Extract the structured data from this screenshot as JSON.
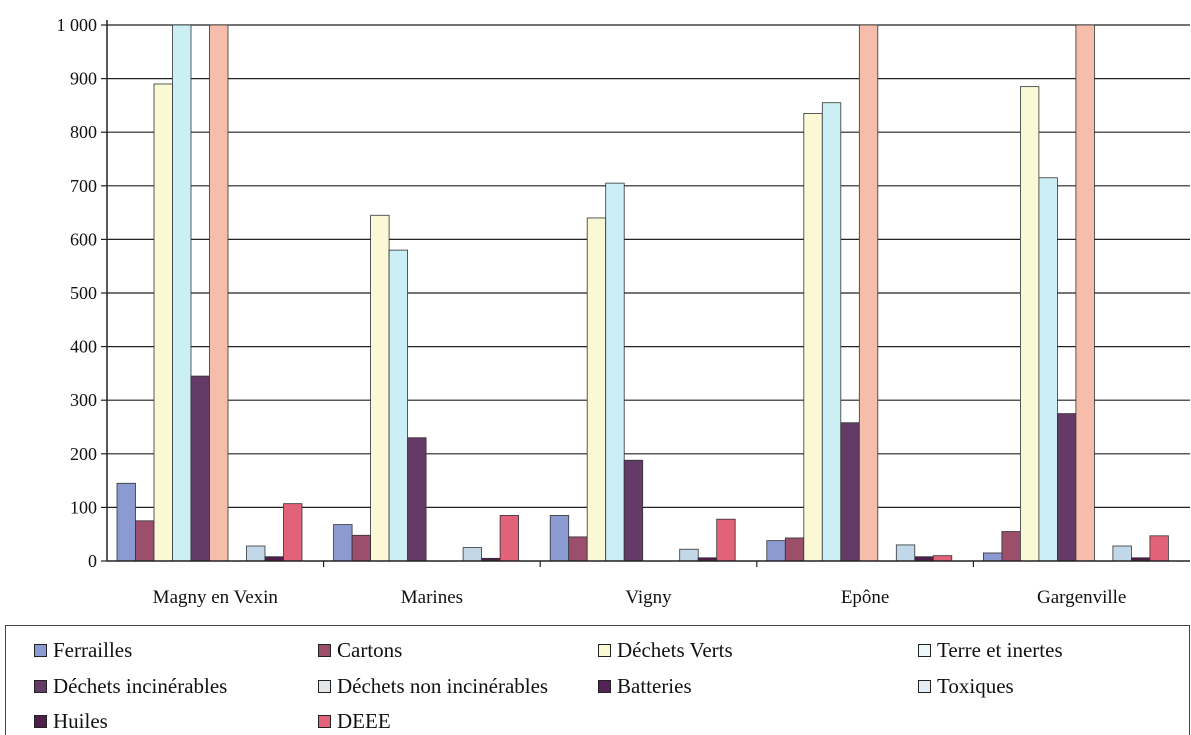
{
  "chart_data": {
    "type": "bar",
    "categories": [
      "Magny en Vexin",
      "Marines",
      "Vigny",
      "Epône",
      "Gargenville"
    ],
    "ylim": [
      0,
      1000
    ],
    "yticks": [
      "0",
      "100",
      "200",
      "300",
      "400",
      "500",
      "600",
      "700",
      "800",
      "900",
      "1 000"
    ],
    "grid": true,
    "legend_position": "bottom",
    "series": [
      {
        "name": "Ferrailles",
        "color": "#8b9ad0",
        "values": [
          145,
          68,
          85,
          38,
          15
        ]
      },
      {
        "name": "Cartons",
        "color": "#9b4f6b",
        "values": [
          75,
          48,
          45,
          43,
          55
        ]
      },
      {
        "name": "Déchets Verts",
        "color": "#fbf8d6",
        "values": [
          890,
          645,
          640,
          835,
          885
        ]
      },
      {
        "name": "Terre et inertes",
        "color": "#cceef5",
        "values": [
          1000,
          580,
          705,
          855,
          715
        ]
      },
      {
        "name": "Déchets incinérables",
        "color": "#643a66",
        "values": [
          345,
          230,
          188,
          258,
          275
        ]
      },
      {
        "name": "Déchets non incinérables",
        "color": "#f6bdaa",
        "values": [
          1000,
          0,
          0,
          1000,
          1000
        ]
      },
      {
        "name": "Batteries",
        "color": "#2a3a84",
        "values": [
          0,
          0,
          0,
          0,
          0
        ]
      },
      {
        "name": "Toxiques",
        "color": "#c2d7e8",
        "values": [
          28,
          25,
          22,
          30,
          28
        ]
      },
      {
        "name": "Huiles",
        "color": "#4d1f4a",
        "values": [
          8,
          5,
          6,
          8,
          6
        ]
      },
      {
        "name": "DEEE",
        "color": "#e2627a",
        "values": [
          107,
          85,
          78,
          10,
          47
        ]
      }
    ]
  },
  "legend": {
    "items": [
      {
        "label": "Ferrailles",
        "color": "#8b9ad0"
      },
      {
        "label": "Cartons",
        "color": "#9b4f6b"
      },
      {
        "label": "Déchets Verts",
        "color": "#fbf8d6"
      },
      {
        "label": "Terre et inertes",
        "color": "#eef8fb"
      },
      {
        "label": "Déchets incinérables",
        "color": "#643a66"
      },
      {
        "label": "Déchets non incinérables",
        "color": "#e2e6e8"
      },
      {
        "label": "Batteries",
        "color": "#552255"
      },
      {
        "label": "Toxiques",
        "color": "#e3edf3"
      },
      {
        "label": "Huiles",
        "color": "#4d1f4a"
      },
      {
        "label": "DEEE",
        "color": "#e2627a"
      }
    ]
  }
}
